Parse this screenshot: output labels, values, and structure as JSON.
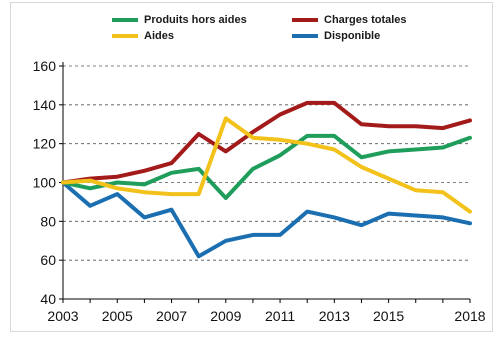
{
  "chart_data": {
    "type": "line",
    "title": "",
    "xlabel": "",
    "ylabel": "",
    "x": [
      2003,
      2004,
      2005,
      2006,
      2007,
      2008,
      2009,
      2010,
      2011,
      2012,
      2013,
      2014,
      2015,
      2016,
      2017,
      2018
    ],
    "xticks": [
      "2003",
      "2005",
      "2007",
      "2009",
      "2011",
      "2013",
      "2015",
      "2018"
    ],
    "yticks": [
      "40",
      "60",
      "80",
      "100",
      "120",
      "140",
      "160"
    ],
    "ylim": [
      40,
      160
    ],
    "grid": "horizontal dashed",
    "legend_position": "top",
    "series": [
      {
        "name": "Produits hors aides",
        "color": "#1e9e5a",
        "values": [
          100,
          97,
          100,
          99,
          105,
          107,
          92,
          107,
          114,
          124,
          124,
          113,
          116,
          117,
          118,
          123
        ]
      },
      {
        "name": "Charges totales",
        "color": "#a31a1a",
        "values": [
          100,
          102,
          103,
          106,
          110,
          125,
          116,
          126,
          135,
          141,
          141,
          130,
          129,
          129,
          128,
          132
        ]
      },
      {
        "name": "Aides",
        "color": "#f2c21b",
        "values": [
          100,
          101,
          97,
          95,
          94,
          94,
          133,
          123,
          122,
          120,
          117,
          108,
          102,
          96,
          95,
          85
        ]
      },
      {
        "name": "Disponible",
        "color": "#1b6fb1",
        "values": [
          100,
          88,
          94,
          82,
          86,
          62,
          70,
          73,
          73,
          85,
          82,
          78,
          84,
          83,
          82,
          79
        ]
      }
    ]
  }
}
